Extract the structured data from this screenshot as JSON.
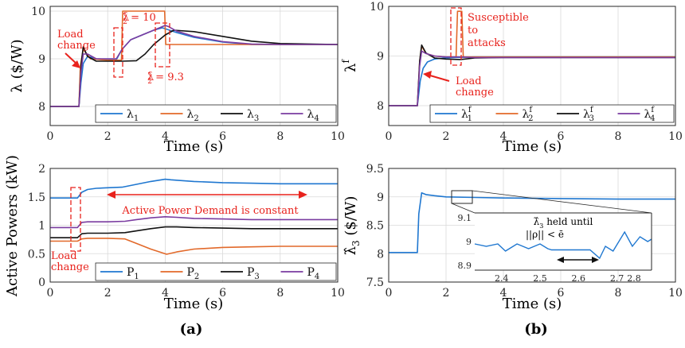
{
  "colors": {
    "blue": "#1f77d0",
    "orange": "#e2692a",
    "black": "#111111",
    "purple": "#7a3ca0",
    "annotation": "#e8221c",
    "grid": "#d9d9d9",
    "axis": "#262626"
  },
  "panel_labels": {
    "a": "(a)",
    "b": "(b)"
  },
  "chart_data": [
    {
      "id": "lambda",
      "type": "line",
      "xlabel": "Time (s)",
      "ylabel": "λ ($/W)",
      "xlim": [
        0,
        10
      ],
      "ylim": [
        7.6,
        10.1
      ],
      "xticks": [
        0,
        2,
        4,
        6,
        8,
        10
      ],
      "yticks": [
        8,
        9,
        10
      ],
      "grid": true,
      "legend": {
        "placement": "bottom-right",
        "columns": 4
      },
      "series": [
        {
          "name": "λ1",
          "label_text": "λ",
          "label_sub": "1",
          "color": "blue",
          "x": [
            0,
            1.0,
            1.07,
            1.15,
            1.3,
            1.6,
            2.0,
            2.3,
            2.5,
            2.8,
            3.2,
            3.6,
            3.9,
            4.05,
            4.4,
            5.0,
            6.0,
            7.0,
            8.0,
            10.0
          ],
          "y": [
            8.0,
            8.0,
            8.5,
            8.9,
            9.05,
            9.0,
            8.99,
            8.98,
            9.2,
            9.4,
            9.5,
            9.6,
            9.65,
            9.62,
            9.55,
            9.45,
            9.35,
            9.3,
            9.3,
            9.3
          ]
        },
        {
          "name": "λ2",
          "label_text": "λ",
          "label_sub": "2",
          "color": "orange",
          "x": [
            0,
            1.0,
            1.05,
            1.15,
            1.4,
            2.0,
            2.48,
            2.52,
            3.98,
            4.02,
            10.0
          ],
          "y": [
            8.0,
            8.0,
            8.85,
            9.2,
            9.0,
            8.97,
            8.97,
            10.0,
            10.0,
            9.3,
            9.3
          ]
        },
        {
          "name": "λ3",
          "label_text": "λ",
          "label_sub": "3",
          "color": "black",
          "x": [
            0,
            1.0,
            1.08,
            1.15,
            1.3,
            1.6,
            2.0,
            2.5,
            3.0,
            3.3,
            3.6,
            4.0,
            4.3,
            5.0,
            6.0,
            7.0,
            8.0,
            10.0
          ],
          "y": [
            8.0,
            8.0,
            8.9,
            9.25,
            9.05,
            8.95,
            8.95,
            8.95,
            8.96,
            9.1,
            9.3,
            9.5,
            9.6,
            9.57,
            9.47,
            9.37,
            9.32,
            9.3
          ]
        },
        {
          "name": "λ4",
          "label_text": "λ",
          "label_sub": "4",
          "color": "purple",
          "x": [
            0,
            1.0,
            1.07,
            1.15,
            1.3,
            1.6,
            2.0,
            2.3,
            2.5,
            2.8,
            3.2,
            3.6,
            4.0,
            4.1,
            4.4,
            5.0,
            6.0,
            7.0,
            8.0,
            10.0
          ],
          "y": [
            8.0,
            8.0,
            8.7,
            9.1,
            9.1,
            9.0,
            9.0,
            9.0,
            9.2,
            9.4,
            9.5,
            9.6,
            9.7,
            9.68,
            9.58,
            9.47,
            9.36,
            9.31,
            9.3,
            9.3
          ]
        }
      ],
      "annotations": {
        "load_change": [
          "Load",
          "change"
        ],
        "box1_label": {
          "prefix": "λ",
          "sup": "c",
          "sub": "2",
          "value": " = 10"
        },
        "box2_label": {
          "prefix": "λ",
          "sup": "c",
          "sub": "2",
          "value": " = 9.3"
        }
      }
    },
    {
      "id": "lambda_f",
      "type": "line",
      "xlabel": "Time (s)",
      "ylabel_text": "λ",
      "ylabel_sup": "f",
      "xlim": [
        0,
        10
      ],
      "ylim": [
        7.6,
        10.0
      ],
      "xticks": [
        0,
        2,
        4,
        6,
        8,
        10
      ],
      "yticks": [
        8,
        9,
        10
      ],
      "grid": true,
      "legend": {
        "placement": "bottom-right",
        "columns": 4
      },
      "series": [
        {
          "name": "λ1f",
          "label_text": "λ",
          "label_sub": "1",
          "label_sup": "f",
          "color": "blue",
          "x": [
            0,
            1.0,
            1.1,
            1.2,
            1.35,
            1.6,
            1.9,
            2.2,
            3.0,
            4.0,
            6.0,
            10.0
          ],
          "y": [
            8.0,
            8.0,
            8.5,
            8.75,
            8.88,
            8.94,
            8.96,
            8.97,
            8.98,
            8.98,
            8.98,
            8.98
          ]
        },
        {
          "name": "λ2f",
          "label_text": "λ",
          "label_sub": "2",
          "label_sup": "f",
          "color": "orange",
          "x": [
            0,
            1.0,
            1.08,
            1.15,
            1.3,
            1.6,
            2.0,
            2.35,
            2.4,
            2.45,
            2.5,
            2.55,
            2.6,
            2.65,
            3.0,
            4.0,
            10.0
          ],
          "y": [
            8.0,
            8.0,
            8.9,
            9.2,
            9.05,
            9.0,
            8.98,
            8.98,
            9.9,
            9.9,
            9.9,
            9.9,
            8.98,
            8.98,
            8.98,
            8.98,
            8.98
          ]
        },
        {
          "name": "λ3f",
          "label_text": "λ",
          "label_sub": "3",
          "label_sup": "f",
          "color": "black",
          "x": [
            0,
            1.0,
            1.08,
            1.15,
            1.3,
            1.6,
            2.0,
            2.5,
            3.0,
            4.0,
            10.0
          ],
          "y": [
            8.0,
            8.0,
            8.9,
            9.22,
            9.06,
            8.96,
            8.94,
            8.93,
            8.96,
            8.97,
            8.97
          ]
        },
        {
          "name": "λ4f",
          "label_text": "λ",
          "label_sub": "4",
          "label_sup": "f",
          "color": "purple",
          "x": [
            0,
            1.0,
            1.08,
            1.15,
            1.3,
            1.6,
            2.0,
            2.5,
            3.0,
            4.0,
            10.0
          ],
          "y": [
            8.0,
            8.0,
            8.8,
            9.1,
            9.05,
            9.0,
            8.98,
            8.98,
            8.97,
            8.97,
            8.97
          ]
        }
      ],
      "annotations": {
        "susceptible": [
          "Susceptible",
          "to",
          "attacks"
        ],
        "load_change": [
          "Load",
          "change"
        ]
      }
    },
    {
      "id": "powers",
      "type": "line",
      "xlabel": "Time (s)",
      "ylabel": "Active Powers (kW)",
      "xlim": [
        0,
        10
      ],
      "ylim": [
        0,
        2
      ],
      "xticks": [
        0,
        2,
        4,
        6,
        8,
        10
      ],
      "yticks": [
        0,
        0.5,
        1,
        1.5,
        2
      ],
      "ytick_labels": [
        "0",
        "0.5",
        "1",
        "1.5",
        "2"
      ],
      "grid": true,
      "legend": {
        "placement": "bottom-right",
        "columns": 4
      },
      "series": [
        {
          "name": "P1",
          "label_text": "P",
          "label_sub": "1",
          "color": "blue",
          "x": [
            0,
            0.95,
            1.1,
            1.3,
            1.6,
            2.0,
            2.5,
            3.0,
            3.5,
            4.0,
            4.2,
            5.0,
            6.0,
            7.0,
            8.0,
            10.0
          ],
          "y": [
            1.48,
            1.48,
            1.58,
            1.63,
            1.65,
            1.66,
            1.67,
            1.72,
            1.77,
            1.81,
            1.8,
            1.77,
            1.75,
            1.74,
            1.73,
            1.73
          ]
        },
        {
          "name": "P2",
          "label_text": "P",
          "label_sub": "2",
          "color": "orange",
          "x": [
            0,
            0.95,
            1.1,
            1.3,
            2.0,
            2.6,
            3.0,
            3.5,
            4.05,
            4.4,
            5.0,
            6.0,
            7.0,
            8.0,
            10.0
          ],
          "y": [
            0.72,
            0.72,
            0.76,
            0.77,
            0.77,
            0.76,
            0.68,
            0.58,
            0.49,
            0.53,
            0.58,
            0.61,
            0.62,
            0.63,
            0.63
          ]
        },
        {
          "name": "P3",
          "label_text": "P",
          "label_sub": "3",
          "color": "black",
          "x": [
            0,
            0.95,
            1.1,
            1.3,
            2.0,
            2.6,
            3.0,
            3.5,
            4.0,
            4.4,
            5.0,
            6.0,
            7.0,
            8.0,
            10.0
          ],
          "y": [
            0.78,
            0.78,
            0.85,
            0.86,
            0.86,
            0.87,
            0.9,
            0.94,
            0.97,
            0.97,
            0.96,
            0.95,
            0.94,
            0.94,
            0.94
          ]
        },
        {
          "name": "P4",
          "label_text": "P",
          "label_sub": "4",
          "color": "purple",
          "x": [
            0,
            0.95,
            1.1,
            1.3,
            2.0,
            2.6,
            3.0,
            3.5,
            4.0,
            4.4,
            5.0,
            6.0,
            7.0,
            8.0,
            10.0
          ],
          "y": [
            0.96,
            0.96,
            1.05,
            1.06,
            1.06,
            1.07,
            1.1,
            1.13,
            1.15,
            1.14,
            1.12,
            1.11,
            1.1,
            1.1,
            1.1
          ]
        }
      ],
      "annotations": {
        "demand": "Active Power Demand is constant",
        "load_change": [
          "Load",
          "change"
        ]
      }
    },
    {
      "id": "lambda_hat",
      "type": "line",
      "xlabel": "Time (s)",
      "ylabel": "λ̂3 ($/W)",
      "ylabel_text": "λ̂",
      "ylabel_sub": "3",
      "ylabel_units": " ($/W)",
      "xlim": [
        0,
        10
      ],
      "ylim": [
        7.5,
        9.5
      ],
      "xticks": [
        0,
        2,
        4,
        6,
        8,
        10
      ],
      "yticks": [
        7.5,
        8,
        8.5,
        9,
        9.5
      ],
      "ytick_labels": [
        "7.5",
        "8",
        "8.5",
        "9",
        "9.5"
      ],
      "grid": true,
      "series": [
        {
          "name": "λ̂3",
          "color": "blue",
          "x": [
            0,
            0.5,
            1.0,
            1.05,
            1.15,
            1.3,
            1.6,
            2.0,
            3.0,
            4.0,
            6.0,
            8.0,
            10.0
          ],
          "y": [
            8.02,
            8.02,
            8.02,
            8.7,
            9.07,
            9.04,
            9.02,
            9.0,
            8.99,
            8.98,
            8.97,
            8.96,
            8.96
          ]
        }
      ],
      "inset": {
        "title_text": "λ̂",
        "title_sub": "3",
        "title_rest": " held until",
        "condition_lhs": "||ρ|| < ",
        "condition_rhs": "ē",
        "xlim": [
          2.33,
          2.79
        ],
        "ylim": [
          8.88,
          9.12
        ],
        "xticks": [
          2.4,
          2.5,
          2.6,
          2.7
        ],
        "xtick_labels": [
          "2.4",
          "2.5",
          "2.6",
          "2.7"
        ],
        "xtick_extra": "2.8",
        "yticks": [
          8.9,
          9,
          9.1
        ],
        "ytick_labels": [
          "8.9",
          "9",
          "9.1"
        ],
        "series": {
          "x": [
            2.33,
            2.36,
            2.39,
            2.41,
            2.44,
            2.47,
            2.5,
            2.52,
            2.53,
            2.6,
            2.63,
            2.655,
            2.67,
            2.69,
            2.72,
            2.74,
            2.76,
            2.78,
            2.79
          ],
          "y": [
            8.99,
            8.98,
            8.99,
            8.96,
            8.99,
            8.97,
            8.99,
            8.97,
            8.965,
            8.965,
            8.965,
            8.93,
            8.98,
            8.96,
            9.04,
            8.98,
            9.02,
            9.0,
            9.01
          ]
        }
      }
    }
  ]
}
